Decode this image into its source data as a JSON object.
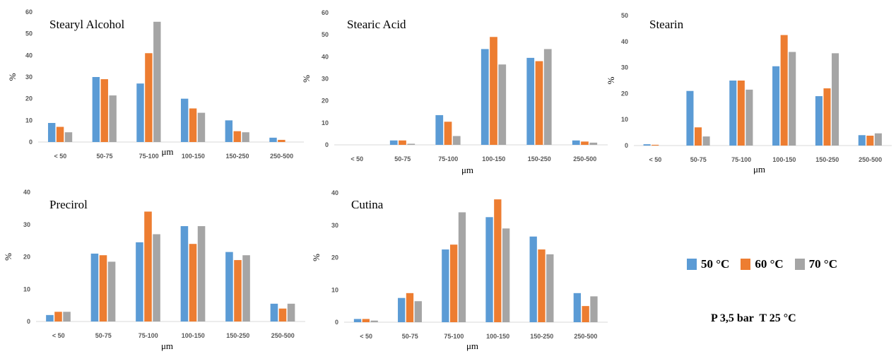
{
  "colors": {
    "50": "#5b9bd5",
    "60": "#ed7d31",
    "70": "#a5a5a5"
  },
  "legend": [
    {
      "label": "50 °C",
      "color": "#5b9bd5"
    },
    {
      "label": "60 °C",
      "color": "#ed7d31"
    },
    {
      "label": "70 °C",
      "color": "#a5a5a5"
    }
  ],
  "conditions": {
    "pressure": "P 3,5 bar",
    "temperature": "T 25 °C"
  },
  "chart_data": [
    {
      "type": "bar",
      "title": "Stearyl Alcohol",
      "xlabel": "μm",
      "ylabel": "%",
      "ylim": [
        0,
        60
      ],
      "yticks": [
        0,
        10,
        20,
        30,
        40,
        50,
        60
      ],
      "categories": [
        "< 50",
        "50-75",
        "75-100",
        "100-150",
        "150-250",
        "250-500"
      ],
      "series": [
        {
          "name": "50 °C",
          "values": [
            8.8,
            30,
            27,
            20,
            10,
            2
          ]
        },
        {
          "name": "60 °C",
          "values": [
            7,
            29,
            41,
            15.5,
            5,
            1
          ]
        },
        {
          "name": "70 °C",
          "values": [
            4.5,
            21.5,
            55.5,
            13.5,
            4.5,
            0
          ]
        }
      ]
    },
    {
      "type": "bar",
      "title": "Stearic Acid",
      "xlabel": "μm",
      "ylabel": "%",
      "ylim": [
        0,
        60
      ],
      "yticks": [
        0,
        10,
        20,
        30,
        40,
        50,
        60
      ],
      "categories": [
        "< 50",
        "50-75",
        "75-100",
        "100-150",
        "150-250",
        "250-500"
      ],
      "series": [
        {
          "name": "50 °C",
          "values": [
            0,
            2,
            13.5,
            43.5,
            39.5,
            2
          ]
        },
        {
          "name": "60 °C",
          "values": [
            0,
            2,
            10.5,
            49,
            38,
            1.5
          ]
        },
        {
          "name": "70 °C",
          "values": [
            0,
            0.5,
            4,
            36.5,
            43.5,
            1
          ]
        }
      ]
    },
    {
      "type": "bar",
      "title": "Stearin",
      "xlabel": "μm",
      "ylabel": "%",
      "ylim": [
        0,
        50
      ],
      "yticks": [
        0,
        10,
        20,
        30,
        40,
        50
      ],
      "categories": [
        "< 50",
        "50-75",
        "75-100",
        "100-150",
        "150-250",
        "250-500"
      ],
      "series": [
        {
          "name": "50 °C",
          "values": [
            0.5,
            21,
            25,
            30.5,
            19,
            4
          ]
        },
        {
          "name": "60 °C",
          "values": [
            0.3,
            7,
            25,
            42.5,
            22,
            3.8
          ]
        },
        {
          "name": "70 °C",
          "values": [
            0,
            3.5,
            21.5,
            36,
            35.5,
            4.7
          ]
        }
      ]
    },
    {
      "type": "bar",
      "title": "Precirol",
      "xlabel": "μm",
      "ylabel": "%",
      "ylim": [
        0,
        40
      ],
      "yticks": [
        0,
        10,
        20,
        30,
        40
      ],
      "categories": [
        "< 50",
        "50-75",
        "75-100",
        "100-150",
        "150-250",
        "250-500"
      ],
      "series": [
        {
          "name": "50 °C",
          "values": [
            2,
            21,
            24.5,
            29.5,
            21.5,
            5.5
          ]
        },
        {
          "name": "60 °C",
          "values": [
            3,
            20.5,
            34,
            24,
            19,
            4
          ]
        },
        {
          "name": "70 °C",
          "values": [
            3,
            18.5,
            27,
            29.5,
            20.5,
            5.5
          ]
        }
      ]
    },
    {
      "type": "bar",
      "title": "Cutina",
      "xlabel": "μm",
      "ylabel": "%",
      "ylim": [
        0,
        40
      ],
      "yticks": [
        0,
        10,
        20,
        30,
        40
      ],
      "categories": [
        "< 50",
        "50-75",
        "75-100",
        "100-150",
        "150-250",
        "250-500"
      ],
      "series": [
        {
          "name": "50 °C",
          "values": [
            1,
            7.5,
            22.5,
            32.5,
            26.5,
            9
          ]
        },
        {
          "name": "60 °C",
          "values": [
            1,
            9,
            24,
            38,
            22.5,
            5
          ]
        },
        {
          "name": "70 °C",
          "values": [
            0.5,
            6.5,
            34,
            29,
            21,
            8
          ]
        }
      ]
    }
  ]
}
